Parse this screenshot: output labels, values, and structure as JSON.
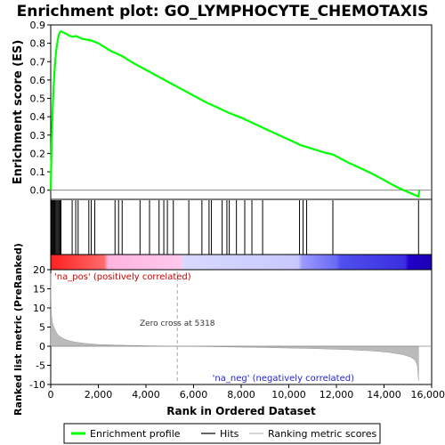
{
  "chart_data": {
    "type": "line",
    "title": "Enrichment plot: GO_LYMPHOCYTE_CHEMOTAXIS",
    "top_panel": {
      "ylabel": "Enrichment score (ES)",
      "ylim": [
        -0.05,
        0.9
      ],
      "yticks": [
        "0.0",
        "0.1",
        "0.2",
        "0.3",
        "0.4",
        "0.5",
        "0.6",
        "0.7",
        "0.8",
        "0.9"
      ],
      "series": {
        "name": "Enrichment profile",
        "color": "#00ff00",
        "x": [
          0,
          20,
          40,
          60,
          80,
          100,
          130,
          160,
          190,
          220,
          260,
          300,
          340,
          380,
          430,
          600,
          800,
          950,
          1050,
          1150,
          1300,
          1500,
          1700,
          2000,
          2500,
          3000,
          3500,
          4000,
          4500,
          5000,
          5500,
          6000,
          6500,
          7000,
          7500,
          8000,
          8500,
          9000,
          9500,
          10000,
          10500,
          11000,
          11500,
          11850,
          12500,
          13000,
          13500,
          14000,
          14500,
          15000,
          15450,
          15480
        ],
        "y": [
          0.0,
          0.12,
          0.26,
          0.35,
          0.43,
          0.5,
          0.58,
          0.65,
          0.7,
          0.75,
          0.79,
          0.82,
          0.845,
          0.86,
          0.865,
          0.855,
          0.84,
          0.835,
          0.84,
          0.835,
          0.825,
          0.82,
          0.815,
          0.8,
          0.76,
          0.73,
          0.69,
          0.655,
          0.62,
          0.585,
          0.55,
          0.515,
          0.48,
          0.45,
          0.42,
          0.395,
          0.365,
          0.335,
          0.305,
          0.275,
          0.245,
          0.225,
          0.205,
          0.195,
          0.15,
          0.12,
          0.09,
          0.055,
          0.02,
          -0.01,
          -0.035,
          0.0
        ]
      }
    },
    "hits_panel": {
      "legend": "Hits",
      "positions": [
        20,
        55,
        90,
        130,
        160,
        190,
        230,
        270,
        310,
        350,
        390,
        430,
        900,
        1050,
        1150,
        1600,
        1700,
        1850,
        2700,
        2850,
        3000,
        3750,
        4150,
        4550,
        4750,
        4900,
        5150,
        5800,
        6350,
        6650,
        6750,
        7200,
        7400,
        7500,
        7800,
        8150,
        8450,
        8900,
        10450,
        10600,
        10750,
        11850,
        15450
      ]
    },
    "bottom_panel": {
      "ylabel": "Ranked list metric (PreRanked)",
      "xlabel": "Rank in Ordered Dataset",
      "ylim": [
        -10,
        20
      ],
      "yticks": [
        "-10",
        "-5",
        "0",
        "5",
        "10",
        "15",
        "20"
      ],
      "xlim": [
        0,
        16000
      ],
      "xticks": [
        "0",
        "2,000",
        "4,000",
        "6,000",
        "8,000",
        "10,000",
        "12,000",
        "14,000",
        "16,000"
      ],
      "zero_cross": 5318,
      "zero_cross_label": "Zero cross at 5318",
      "pos_label": "'na_pos' (positively correlated)",
      "neg_label": "'na_neg' (negatively correlated)",
      "legend": "Ranking metric scores",
      "metric_x": [
        0,
        10,
        30,
        60,
        100,
        150,
        200,
        300,
        400,
        600,
        800,
        1000,
        1500,
        2000,
        3000,
        4000,
        5318,
        7000,
        9000,
        11000,
        12500,
        13500,
        14200,
        14800,
        15100,
        15300,
        15400,
        15450
      ],
      "metric_y": [
        19,
        12,
        8.5,
        6.5,
        5.5,
        4.8,
        4.0,
        3.0,
        2.5,
        1.8,
        1.4,
        1.1,
        0.7,
        0.45,
        0.25,
        0.12,
        0.0,
        -0.15,
        -0.35,
        -0.6,
        -0.9,
        -1.2,
        -1.6,
        -2.2,
        -2.8,
        -3.6,
        -5.0,
        -9.0
      ]
    },
    "legend": {
      "placement": "bottom",
      "entries": [
        "Enrichment profile",
        "Hits",
        "Ranking metric scores"
      ]
    },
    "colors": {
      "profile": "#00ff00",
      "zero_line": "#aaaaaa",
      "pos_label": "#cc0000",
      "neg_label": "#2222cc",
      "metric_fill": "#bbbbbb",
      "gradient": [
        "#ff3333",
        "#ff8888",
        "#ffbbdd",
        "#ddddff",
        "#aaaaff",
        "#5555ee",
        "#2200cc"
      ]
    }
  }
}
